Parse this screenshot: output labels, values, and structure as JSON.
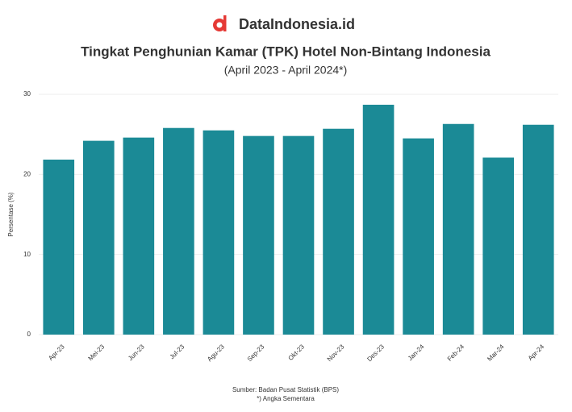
{
  "brand": "DataIndonesia.id",
  "chart_data": {
    "type": "bar",
    "title": "Tingkat Penghunian Kamar (TPK) Hotel Non-Bintang Indonesia",
    "subtitle": "(April 2023 - April 2024*)",
    "y_label": "Persentase (%)",
    "categories": [
      "Apr-23",
      "Mei-23",
      "Jun-23",
      "Jul-23",
      "Agu-23",
      "Sep-23",
      "Okt-23",
      "Nov-23",
      "Des-23",
      "Jan-24",
      "Feb-24",
      "Mar-24",
      "Apr-24"
    ],
    "values": [
      21.85,
      24.2,
      24.6,
      25.8,
      25.5,
      24.8,
      24.8,
      25.7,
      28.7,
      24.5,
      26.3,
      22.1,
      26.2
    ],
    "color": "#1b8a96",
    "ylim": [
      0,
      30
    ],
    "yticks": [
      0,
      10,
      20,
      30
    ],
    "grid": true,
    "source": "Sumber: Badan Pusat Statistik (BPS)",
    "note": "*) Angka Sementara"
  }
}
